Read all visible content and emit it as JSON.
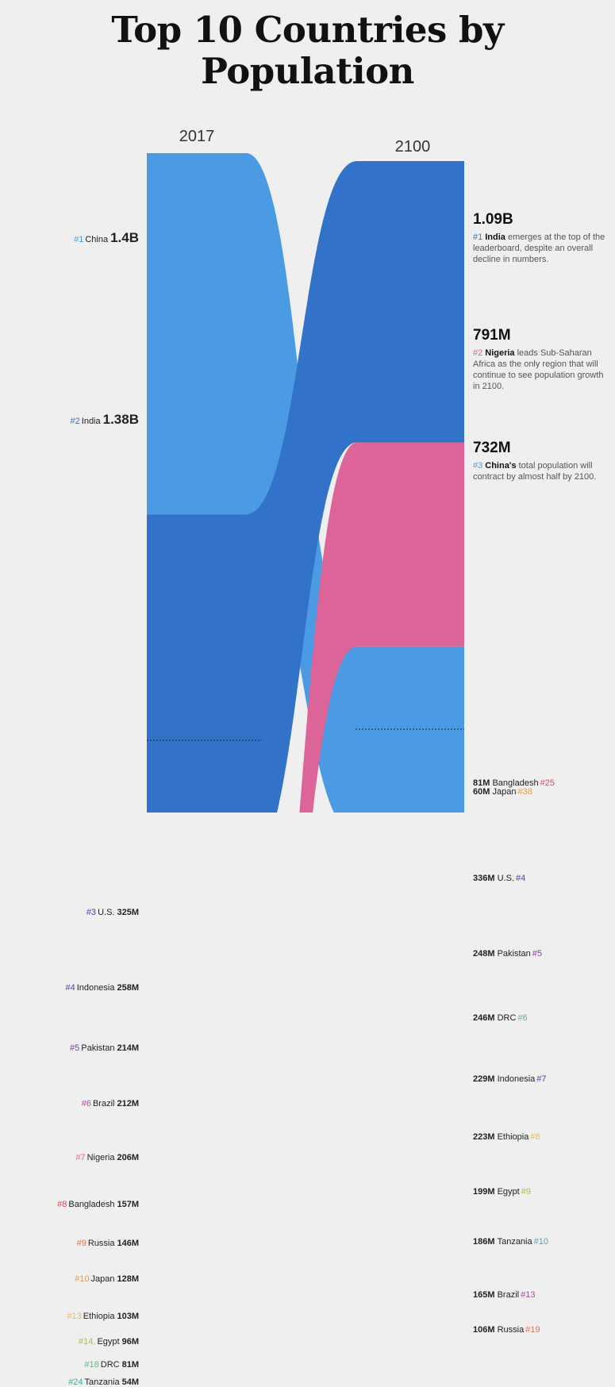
{
  "title": "Top 10 Countries by Population",
  "years": {
    "left": "2017",
    "right": "2100"
  },
  "chart_data": {
    "type": "sankey",
    "title": "Top 10 Countries by Population",
    "years": [
      "2017",
      "2100"
    ],
    "left_labels": [
      {
        "rank": "#1",
        "name": "China",
        "value": "1.4B",
        "big": true
      },
      {
        "rank": "#2",
        "name": "India",
        "value": "1.38B",
        "big": true
      },
      {
        "rank": "#3",
        "name": "U.S.",
        "value": "325M"
      },
      {
        "rank": "#4",
        "name": "Indonesia",
        "value": "258M"
      },
      {
        "rank": "#5",
        "name": "Pakistan",
        "value": "214M"
      },
      {
        "rank": "#6",
        "name": "Brazil",
        "value": "212M"
      },
      {
        "rank": "#7",
        "name": "Nigeria",
        "value": "206M"
      },
      {
        "rank": "#8",
        "name": "Bangladesh",
        "value": "157M"
      },
      {
        "rank": "#9",
        "name": "Russia",
        "value": "146M"
      },
      {
        "rank": "#10",
        "name": "Japan",
        "value": "128M"
      },
      {
        "rank": "#13",
        "name": "Ethiopia",
        "value": "103M"
      },
      {
        "rank": "#14.",
        "name": "Egypt",
        "value": "96M"
      },
      {
        "rank": "#18",
        "name": "DRC",
        "value": "81M"
      },
      {
        "rank": "#24",
        "name": "Tanzania",
        "value": "54M"
      }
    ],
    "right_labels": [
      {
        "value": "336M",
        "name": "U.S.",
        "rank": "#4"
      },
      {
        "value": "248M",
        "name": "Pakistan",
        "rank": "#5"
      },
      {
        "value": "246M",
        "name": "DRC",
        "rank": "#6"
      },
      {
        "value": "229M",
        "name": "Indonesia",
        "rank": "#7"
      },
      {
        "value": "223M",
        "name": "Ethiopia",
        "rank": "#8"
      },
      {
        "value": "199M",
        "name": "Egypt",
        "rank": "#9"
      },
      {
        "value": "186M",
        "name": "Tanzania",
        "rank": "#10"
      },
      {
        "value": "165M",
        "name": "Brazil",
        "rank": "#13"
      },
      {
        "value": "106M",
        "name": "Russia",
        "rank": "#19"
      },
      {
        "value": "81M",
        "name": "Bangladesh",
        "rank": "#25"
      },
      {
        "value": "60M",
        "name": "Japan",
        "rank": "#38"
      }
    ],
    "callouts": [
      {
        "value": "1.09B",
        "rank": "#1",
        "country": "India",
        "text": "emerges at the top of the leaderboard, despite an overall decline in numbers."
      },
      {
        "value": "791M",
        "rank": "#2",
        "country": "Nigeria",
        "text": "leads Sub-Saharan Africa as the only region that will continue to see population growth in 2100."
      },
      {
        "value": "732M",
        "rank": "#3",
        "country": "China's",
        "text": "total population will contract by almost half by 2100."
      }
    ],
    "countries": [
      {
        "name": "China",
        "y2017": 1400,
        "y2100": 732,
        "color": "#4a9be3"
      },
      {
        "name": "India",
        "y2017": 1380,
        "y2100": 1090,
        "color": "#3273c9"
      },
      {
        "name": "U.S.",
        "y2017": 325,
        "y2100": 336,
        "color": "#3a48a8"
      },
      {
        "name": "Indonesia",
        "y2017": 258,
        "y2100": 229,
        "color": "#5b3d9e"
      },
      {
        "name": "Pakistan",
        "y2017": 214,
        "y2100": 248,
        "color": "#80409f"
      },
      {
        "name": "Brazil",
        "y2017": 212,
        "y2100": 165,
        "color": "#b2489e"
      },
      {
        "name": "Nigeria",
        "y2017": 206,
        "y2100": 791,
        "color": "#dc6498"
      },
      {
        "name": "Bangladesh",
        "y2017": 157,
        "y2100": 81,
        "color": "#dd4a56"
      },
      {
        "name": "Russia",
        "y2017": 146,
        "y2100": 106,
        "color": "#ee6f45"
      },
      {
        "name": "Japan",
        "y2017": 128,
        "y2100": 60,
        "color": "#f09a3b"
      },
      {
        "name": "Ethiopia",
        "y2017": 103,
        "y2100": 223,
        "color": "#efbb3c"
      },
      {
        "name": "Egypt",
        "y2017": 96,
        "y2100": 199,
        "color": "#a7bd4b"
      },
      {
        "name": "DRC",
        "y2017": 81,
        "y2100": 246,
        "color": "#5cb97e"
      },
      {
        "name": "Tanzania",
        "y2017": 54,
        "y2100": 186,
        "color": "#4aa8a0"
      }
    ]
  }
}
